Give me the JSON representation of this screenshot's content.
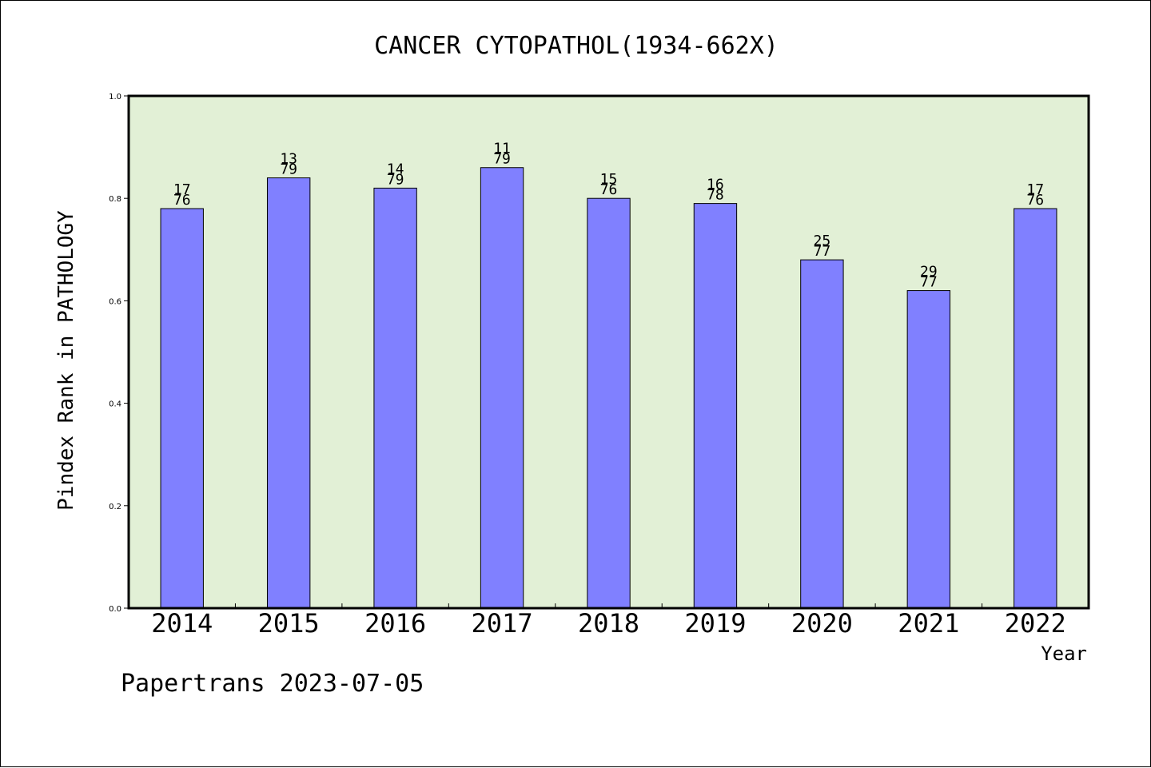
{
  "chart_data": {
    "type": "bar",
    "title": "CANCER CYTOPATHOL(1934-662X)",
    "xlabel": "Year",
    "ylabel": "Pindex Rank in PATHOLOGY",
    "ylim": [
      0.0,
      1.0
    ],
    "yticks": [
      "0.0",
      "0.2",
      "0.4",
      "0.6",
      "0.8",
      "1.0"
    ],
    "grid": false,
    "categories": [
      "2014",
      "2015",
      "2016",
      "2017",
      "2018",
      "2019",
      "2020",
      "2021",
      "2022"
    ],
    "values": [
      0.78,
      0.84,
      0.82,
      0.86,
      0.8,
      0.79,
      0.68,
      0.62,
      0.78
    ],
    "labels_top": [
      "17",
      "13",
      "14",
      "11",
      "15",
      "16",
      "25",
      "29",
      "17"
    ],
    "labels_bottom": [
      "76",
      "79",
      "79",
      "79",
      "76",
      "78",
      "77",
      "77",
      "76"
    ],
    "colors": {
      "bar": "#8080ff",
      "plot_bg": "#e2f0d6",
      "text": "#000000"
    }
  },
  "footer": {
    "text": "Papertrans 2023-07-05"
  }
}
